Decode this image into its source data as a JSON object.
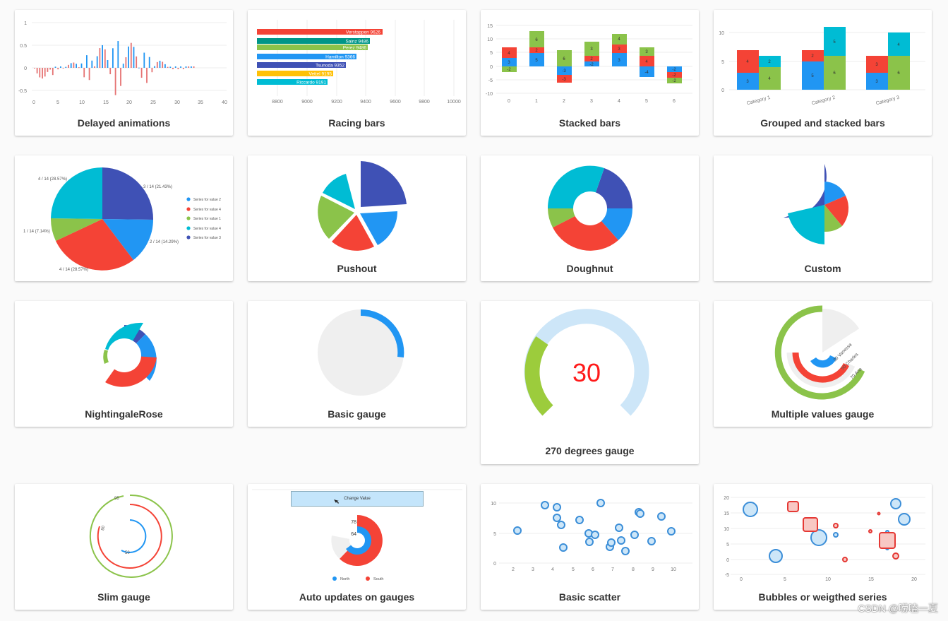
{
  "captions": {
    "c1": "Delayed animations",
    "c2": "Racing bars",
    "c3": "Stacked bars",
    "c4": "Grouped and stacked bars",
    "c5": "",
    "c6": "Pushout",
    "c7": "Doughnut",
    "c8": "Custom",
    "c9": "NightingaleRose",
    "c10": "Basic gauge",
    "c11": "270 degrees gauge",
    "c12": "Multiple values gauge",
    "c13": "Slim gauge",
    "c14": "Auto updates on gauges",
    "c15": "Basic scatter",
    "c16": "Bubbles or weigthed series"
  },
  "delayed": {
    "y_ticks": [
      "1",
      "0.5",
      "0",
      "-0.5"
    ],
    "x_ticks": [
      "0",
      "5",
      "10",
      "15",
      "20",
      "25",
      "30",
      "35",
      "40"
    ]
  },
  "racing": {
    "x_ticks": [
      "8800",
      "9000",
      "9200",
      "9400",
      "9600",
      "9800",
      "10000"
    ],
    "bars": [
      "Verstappen 9626",
      "Sainz 9486",
      "Perez 9486",
      "Hamilton 9366",
      "Tsunoda 9352",
      "Vettel 9195",
      "Riccardo 9191"
    ]
  },
  "stacked": {
    "y_ticks": [
      "15",
      "10",
      "5",
      "0",
      "-5",
      "-10"
    ],
    "x_ticks": [
      "0",
      "1",
      "2",
      "3",
      "4",
      "5",
      "6"
    ],
    "labels": [
      "4",
      "2",
      "3",
      "-2",
      "6",
      "2",
      "5",
      "6",
      "-3",
      "-3",
      "3",
      "2",
      "-2",
      "4",
      "3",
      "3",
      "3",
      "4",
      "-4",
      "-2",
      "-2",
      "-2"
    ]
  },
  "grouped": {
    "y_ticks": [
      "10",
      "5",
      "0"
    ],
    "categories": [
      "Category 1",
      "Category 2",
      "Category 3"
    ],
    "labels": [
      "4",
      "3",
      "2",
      "4",
      "2",
      "5",
      "5",
      "6",
      "3",
      "3",
      "4",
      "6"
    ]
  },
  "pie": {
    "slice_labels": [
      "4 / 14 (28.57%)",
      "3 / 14 (21.43%)",
      "1 / 14 (7.14%)",
      "2 / 14 (14.29%)",
      "4 / 14 (28.57%)"
    ],
    "legend": [
      "Series for value 2",
      "Series for value 4",
      "Series for value 1",
      "Series for value 4",
      "Series for value 3"
    ]
  },
  "gauge270": {
    "value": "30"
  },
  "multi_gauge": {
    "labels": [
      "30 Vanessa",
      "50 Charles",
      "70 Ana"
    ]
  },
  "slim": {
    "labels": [
      "95",
      "80",
      "50"
    ]
  },
  "auto": {
    "button": "Change Value",
    "values": [
      "78",
      "64"
    ],
    "legend": [
      "North",
      "South"
    ]
  },
  "scatter": {
    "y_ticks": [
      "10",
      "5",
      "0"
    ],
    "x_ticks": [
      "2",
      "3",
      "4",
      "5",
      "6",
      "7",
      "8",
      "9",
      "10"
    ]
  },
  "bubbles": {
    "y_ticks": [
      "20",
      "15",
      "10",
      "5",
      "0",
      "-5"
    ],
    "x_ticks": [
      "0",
      "5",
      "10",
      "15",
      "20"
    ]
  },
  "watermark": "CSDN @唠嗑一夏",
  "colors": {
    "red": "#f44336",
    "blue": "#2196f3",
    "green": "#8bc34a",
    "cyan": "#00bcd4",
    "indigo": "#3f51b5",
    "teal": "#009688",
    "yellow": "#ffc107",
    "light_green": "#9ccc3c",
    "light_blue": "#cde6f8",
    "grey": "#efefef"
  }
}
